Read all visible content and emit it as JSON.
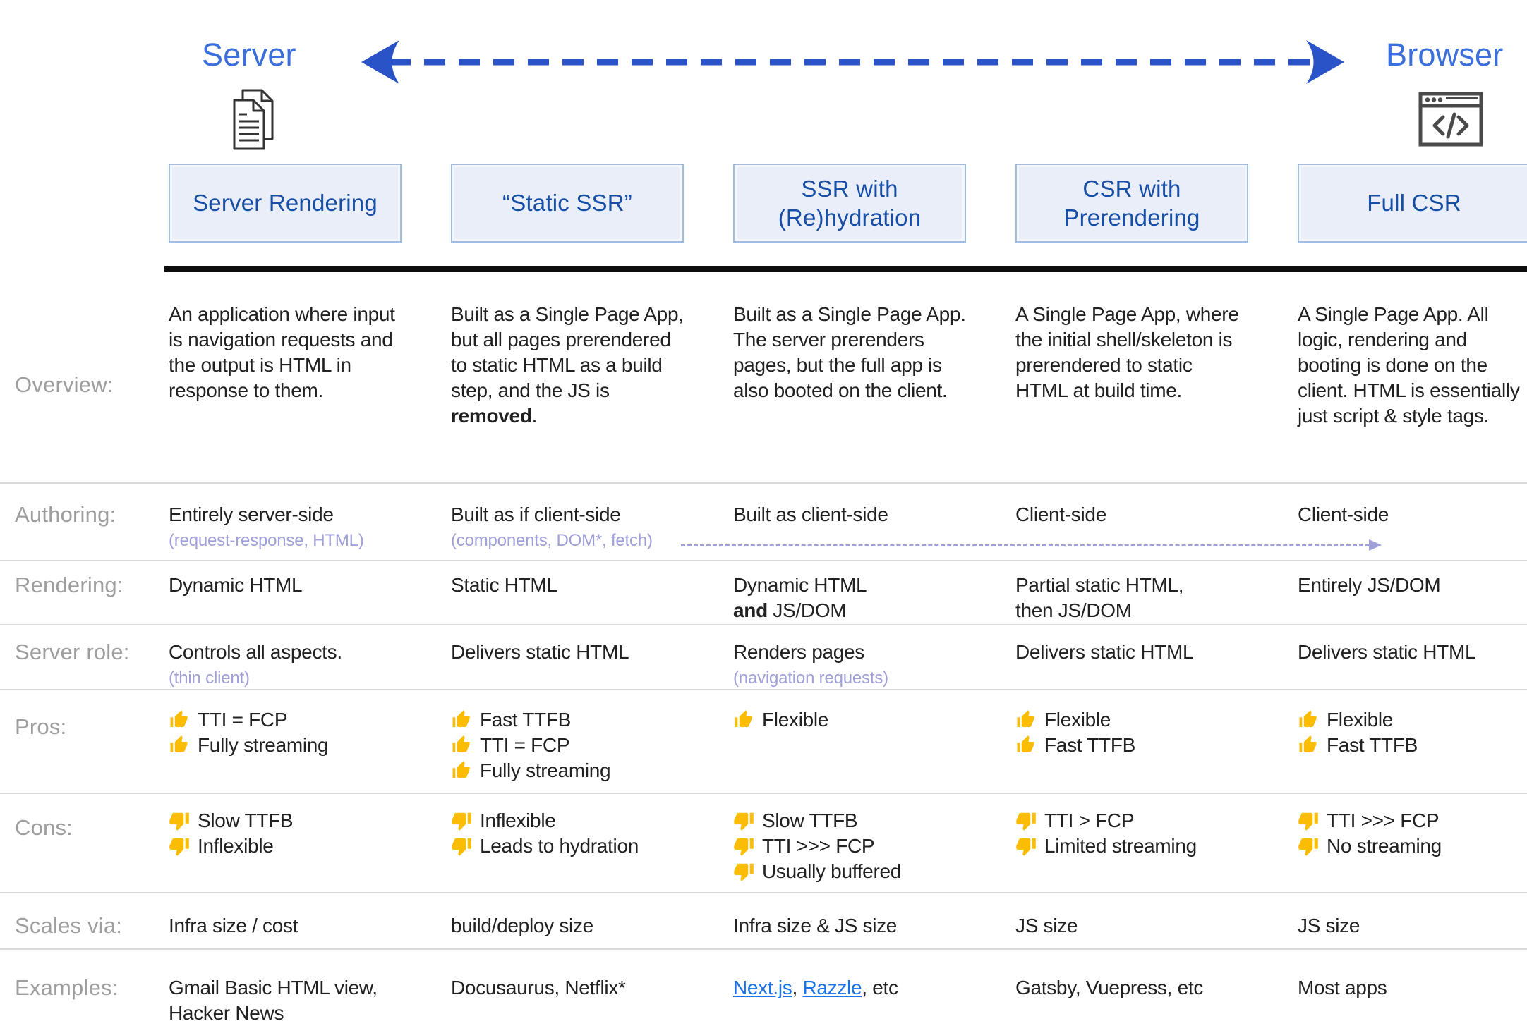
{
  "header": {
    "server_label": "Server",
    "browser_label": "Browser",
    "columns": [
      "Server Rendering",
      "“Static SSR”",
      "SSR with (Re)hydration",
      "CSR with Prerendering",
      "Full CSR"
    ]
  },
  "colors": {
    "axis_label_blue": "#3b6fdc",
    "arrow_blue": "#2a53c8",
    "header_box_bg": "#e9eef9",
    "header_box_border": "#9fbce2",
    "header_box_text": "#174ea6",
    "body_text": "#212121",
    "row_label_gray": "#9e9e9e",
    "subtext_lavender": "#9f9fd9",
    "flow_arrow_lavender": "#9f9fd9",
    "link_blue": "#1a73e8",
    "thumb_gold": "#fbbc04",
    "separator_gray": "#d9d9d9",
    "black_rule": "#0d0d0d",
    "icon_gray": "#3c4043"
  },
  "icons": {
    "server": "documents-icon",
    "browser": "browser-window-code-icon",
    "pro": "thumb-up-icon",
    "con": "thumb-down-icon"
  },
  "table": {
    "rows": [
      {
        "key": "overview",
        "label": "Overview:",
        "cells": [
          {
            "parts": [
              {
                "t": "An application where input is navigation requests and the output is HTML in response to them."
              }
            ]
          },
          {
            "parts": [
              {
                "t": "Built as a Single Page App, but all pages prerendered to static HTML as a build step, and the JS is "
              },
              {
                "t": "removed",
                "b": true
              },
              {
                "t": "."
              }
            ]
          },
          {
            "parts": [
              {
                "t": "Built as a Single Page App. The server prerenders pages, but the full app is also booted on the client."
              }
            ]
          },
          {
            "parts": [
              {
                "t": "A Single Page App, where the initial shell/skeleton is prerendered to static HTML at build time."
              }
            ]
          },
          {
            "parts": [
              {
                "t": "A Single Page App. All logic, rendering and booting is done on the client. HTML is essentially just script & style tags."
              }
            ]
          }
        ]
      },
      {
        "key": "authoring",
        "label": "Authoring:",
        "cells": [
          {
            "parts": [
              {
                "t": "Entirely server-side"
              }
            ],
            "sub": "(request-response, HTML)"
          },
          {
            "parts": [
              {
                "t": "Built as if client-side"
              }
            ],
            "sub": "(components, DOM*, fetch)"
          },
          {
            "parts": [
              {
                "t": "Built as client-side"
              }
            ]
          },
          {
            "parts": [
              {
                "t": "Client-side"
              }
            ]
          },
          {
            "parts": [
              {
                "t": "Client-side"
              }
            ]
          }
        ]
      },
      {
        "key": "rendering",
        "label": "Rendering:",
        "cells": [
          {
            "parts": [
              {
                "t": "Dynamic HTML"
              }
            ]
          },
          {
            "parts": [
              {
                "t": "Static HTML"
              }
            ]
          },
          {
            "parts": [
              {
                "t": "Dynamic HTML\n"
              },
              {
                "t": "and",
                "b": true
              },
              {
                "t": " JS/DOM"
              }
            ]
          },
          {
            "parts": [
              {
                "t": "Partial static HTML,\nthen JS/DOM"
              }
            ]
          },
          {
            "parts": [
              {
                "t": "Entirely JS/DOM"
              }
            ]
          }
        ]
      },
      {
        "key": "server-role",
        "label": "Server role:",
        "cells": [
          {
            "parts": [
              {
                "t": "Controls all aspects."
              }
            ],
            "sub": "(thin client)"
          },
          {
            "parts": [
              {
                "t": "Delivers static HTML"
              }
            ]
          },
          {
            "parts": [
              {
                "t": "Renders pages"
              }
            ],
            "sub": "(navigation requests)"
          },
          {
            "parts": [
              {
                "t": "Delivers static HTML"
              }
            ]
          },
          {
            "parts": [
              {
                "t": "Delivers static HTML"
              }
            ]
          }
        ]
      },
      {
        "key": "pros",
        "label": "Pros:",
        "cells": [
          {
            "items": [
              {
                "icon": "thumb-up",
                "t": "TTI = FCP"
              },
              {
                "icon": "thumb-up",
                "t": "Fully streaming"
              }
            ]
          },
          {
            "items": [
              {
                "icon": "thumb-up",
                "t": "Fast TTFB"
              },
              {
                "icon": "thumb-up",
                "t": "TTI = FCP"
              },
              {
                "icon": "thumb-up",
                "t": "Fully streaming"
              }
            ]
          },
          {
            "items": [
              {
                "icon": "thumb-up",
                "t": "Flexible"
              }
            ]
          },
          {
            "items": [
              {
                "icon": "thumb-up",
                "t": "Flexible"
              },
              {
                "icon": "thumb-up",
                "t": "Fast TTFB"
              }
            ]
          },
          {
            "items": [
              {
                "icon": "thumb-up",
                "t": "Flexible"
              },
              {
                "icon": "thumb-up",
                "t": "Fast TTFB"
              }
            ]
          }
        ]
      },
      {
        "key": "cons",
        "label": "Cons:",
        "cells": [
          {
            "items": [
              {
                "icon": "thumb-down",
                "t": "Slow TTFB"
              },
              {
                "icon": "thumb-down",
                "t": "Inflexible"
              }
            ]
          },
          {
            "items": [
              {
                "icon": "thumb-down",
                "t": "Inflexible"
              },
              {
                "icon": "thumb-down",
                "t": "Leads to hydration"
              }
            ]
          },
          {
            "items": [
              {
                "icon": "thumb-down",
                "t": "Slow TTFB"
              },
              {
                "icon": "thumb-down",
                "t": "TTI >>> FCP"
              },
              {
                "icon": "thumb-down",
                "t": "Usually buffered"
              }
            ]
          },
          {
            "items": [
              {
                "icon": "thumb-down",
                "t": "TTI > FCP"
              },
              {
                "icon": "thumb-down",
                "t": "Limited streaming"
              }
            ]
          },
          {
            "items": [
              {
                "icon": "thumb-down",
                "t": "TTI >>> FCP"
              },
              {
                "icon": "thumb-down",
                "t": "No streaming"
              }
            ]
          }
        ]
      },
      {
        "key": "scales-via",
        "label": "Scales via:",
        "cells": [
          {
            "parts": [
              {
                "t": "Infra size / cost"
              }
            ]
          },
          {
            "parts": [
              {
                "t": "build/deploy size"
              }
            ]
          },
          {
            "parts": [
              {
                "t": "Infra size & JS size"
              }
            ]
          },
          {
            "parts": [
              {
                "t": "JS size"
              }
            ]
          },
          {
            "parts": [
              {
                "t": "JS size"
              }
            ]
          }
        ]
      },
      {
        "key": "examples",
        "label": "Examples:",
        "cells": [
          {
            "parts": [
              {
                "t": "Gmail Basic HTML view,\nHacker News"
              }
            ]
          },
          {
            "parts": [
              {
                "t": "Docusaurus, Netflix*"
              }
            ]
          },
          {
            "parts": [
              {
                "t": "Next.js",
                "link": true
              },
              {
                "t": ", "
              },
              {
                "t": "Razzle",
                "link": true
              },
              {
                "t": ", etc"
              }
            ]
          },
          {
            "parts": [
              {
                "t": "Gatsby, Vuepress, etc"
              }
            ]
          },
          {
            "parts": [
              {
                "t": "Most apps"
              }
            ]
          }
        ]
      }
    ]
  }
}
